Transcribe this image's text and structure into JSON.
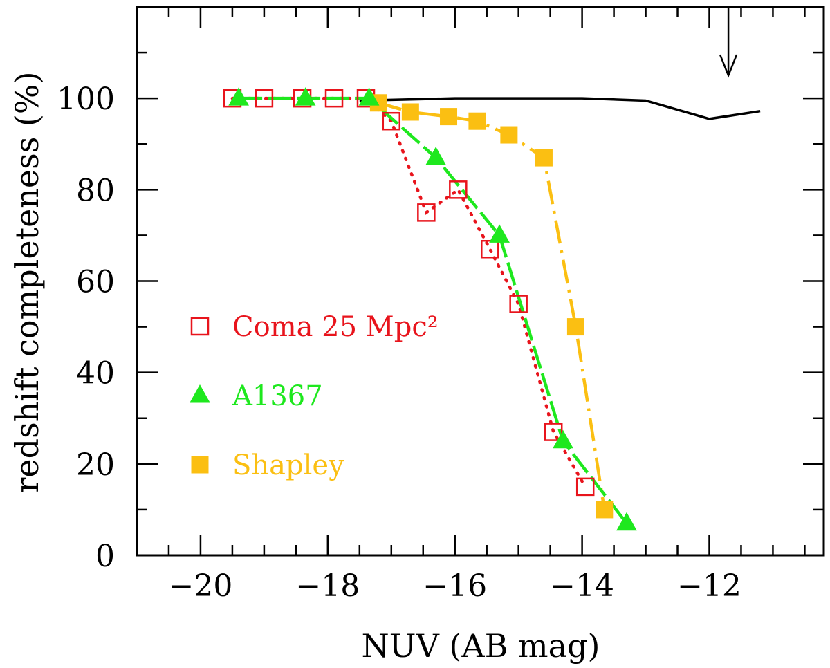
{
  "chart_data": {
    "type": "line",
    "title": "",
    "xlabel": "NUV (AB mag)",
    "ylabel": "redshift completeness (%)",
    "xlim": [
      -21.0,
      -10.2
    ],
    "ylim": [
      0,
      120
    ],
    "xticks": [
      -20,
      -18,
      -16,
      -14,
      -12
    ],
    "xtick_labels": [
      "−20",
      "−18",
      "−16",
      "−14",
      "−12"
    ],
    "yticks": [
      0,
      20,
      40,
      60,
      80,
      100
    ],
    "ytick_labels": [
      "0",
      "20",
      "40",
      "60",
      "80",
      "100"
    ],
    "grid": false,
    "legend_position": "middle-left",
    "arrow_marker": {
      "x": -11.7,
      "y_from": 120,
      "y_to": 105
    },
    "reference_line": {
      "color": "#000000",
      "x": [
        -17.5,
        -16.0,
        -14.0,
        -13.0,
        -12.0,
        -11.2
      ],
      "y": [
        99.5,
        100.0,
        100.0,
        99.5,
        95.5,
        97.2
      ]
    },
    "series": [
      {
        "name": "Coma 25 Mpc²",
        "color": "#e8141c",
        "marker": "open-square",
        "line": "dotted",
        "x": [
          -19.5,
          -19.0,
          -18.4,
          -17.9,
          -17.4,
          -17.0,
          -16.45,
          -15.95,
          -15.45,
          -15.0,
          -14.45,
          -13.95
        ],
        "y": [
          100,
          100,
          100,
          100,
          100,
          95,
          75,
          80,
          67,
          55,
          27,
          15
        ]
      },
      {
        "name": "A1367",
        "color": "#1ee81e",
        "marker": "filled-triangle",
        "line": "solid-dashed",
        "x": [
          -19.4,
          -18.35,
          -17.35,
          -16.3,
          -15.3,
          -14.3,
          -13.3
        ],
        "y": [
          100,
          100,
          100,
          87,
          70,
          25,
          7
        ]
      },
      {
        "name": "Shapley",
        "color": "#fbbf12",
        "marker": "filled-square",
        "line": "dash-dot",
        "x": [
          -17.2,
          -16.7,
          -16.1,
          -15.65,
          -15.15,
          -14.6,
          -14.1,
          -13.65
        ],
        "y": [
          99,
          97,
          96,
          95,
          92,
          87,
          50,
          10
        ]
      }
    ]
  }
}
